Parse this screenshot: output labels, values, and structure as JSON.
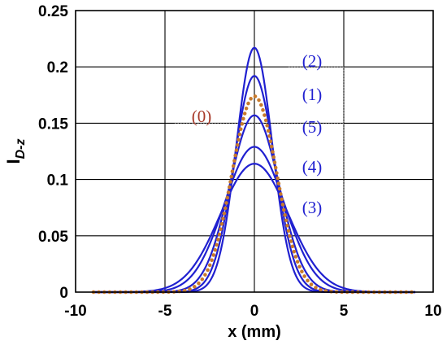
{
  "chart_data": {
    "type": "line",
    "xlabel": "x (mm)",
    "ylabel_main": "I",
    "ylabel_sub": "D-z",
    "xlim": [
      -10,
      10
    ],
    "ylim": [
      0,
      0.25
    ],
    "xticks": [
      -10,
      -5,
      0,
      5,
      10
    ],
    "yticks": [
      0,
      0.05,
      0.1,
      0.15,
      0.2,
      0.25
    ],
    "xtick_labels": [
      "-10",
      "-5",
      "0",
      "5",
      "10"
    ],
    "ytick_labels": [
      "0",
      "0.05",
      "0.1",
      "0.15",
      "0.2",
      "0.25"
    ],
    "grid": true,
    "colors": {
      "blue": "#2020d0",
      "red": "#a83a2a",
      "dotted_orange": "#c87a2a"
    },
    "series": [
      {
        "name": "(2)",
        "peak": 0.217,
        "sigma": 1.0,
        "color": "#2020d0",
        "style": "solid"
      },
      {
        "name": "(1)",
        "peak": 0.192,
        "sigma": 1.13,
        "color": "#2020d0",
        "style": "solid"
      },
      {
        "name": "(5)",
        "peak": 0.157,
        "sigma": 1.38,
        "color": "#2020d0",
        "style": "solid"
      },
      {
        "name": "(4)",
        "peak": 0.129,
        "sigma": 1.68,
        "color": "#2020d0",
        "style": "solid"
      },
      {
        "name": "(3)",
        "peak": 0.114,
        "sigma": 1.9,
        "color": "#2020d0",
        "style": "solid"
      },
      {
        "name": "(0)",
        "peak": 0.174,
        "sigma": 1.25,
        "color": "#c87a2a",
        "style": "dotted"
      }
    ],
    "x_range": [
      -9,
      9
    ],
    "annotations": [
      {
        "text": "(2)",
        "color": "#2020d0"
      },
      {
        "text": "(1)",
        "color": "#2020d0"
      },
      {
        "text": "(0)",
        "color": "#a83a2a"
      },
      {
        "text": "(5)",
        "color": "#2020d0"
      },
      {
        "text": "(4)",
        "color": "#2020d0"
      },
      {
        "text": "(3)",
        "color": "#2020d0"
      }
    ]
  }
}
